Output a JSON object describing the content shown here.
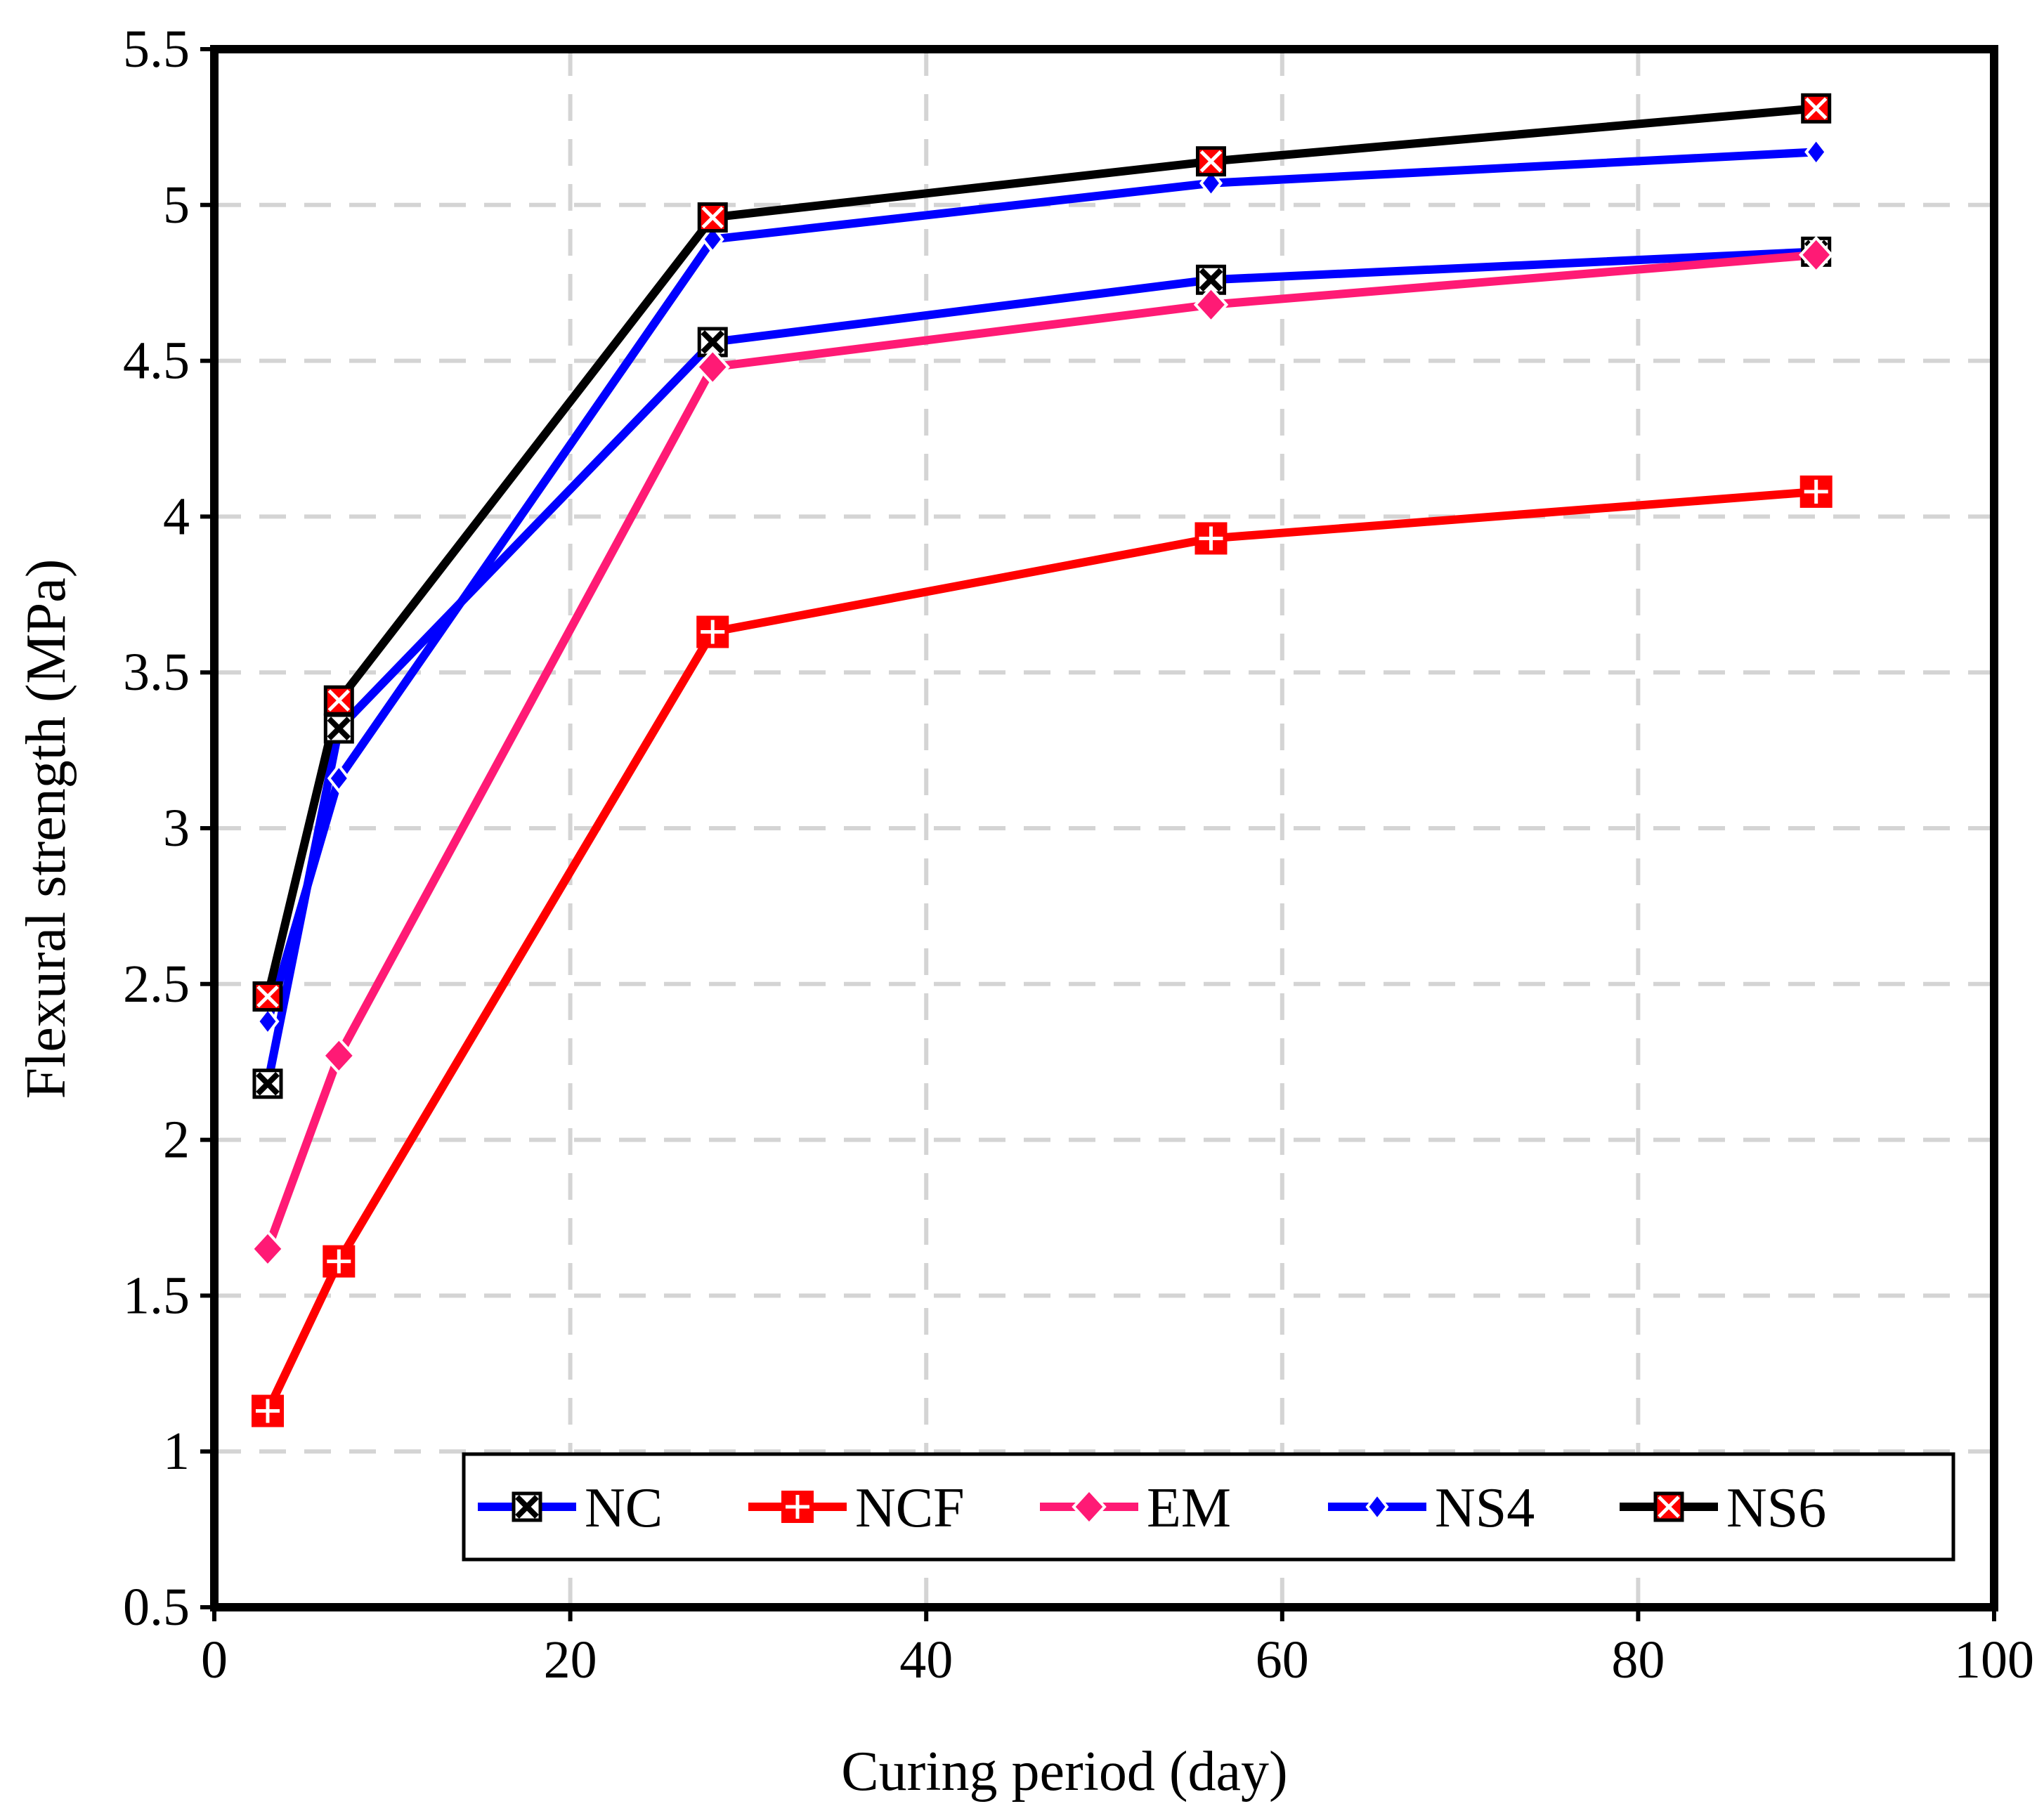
{
  "chart_data": {
    "type": "line",
    "title": "",
    "xlabel": "Curing period (day)",
    "ylabel": "Flexural strength (MPa)",
    "xlim": [
      0,
      100
    ],
    "ylim": [
      0.5,
      5.5
    ],
    "xticks": [
      0,
      20,
      40,
      60,
      80,
      100
    ],
    "yticks": [
      0.5,
      1,
      1.5,
      2,
      2.5,
      3,
      3.5,
      4,
      4.5,
      5,
      5.5
    ],
    "xtick_labels": [
      "0",
      "20",
      "40",
      "60",
      "80",
      "100"
    ],
    "ytick_labels": [
      "0.5",
      "1",
      "1.5",
      "2",
      "2.5",
      "3",
      "3.5",
      "4",
      "4.5",
      "5",
      "5.5"
    ],
    "grid": true,
    "legend_position": "bottom-right",
    "x": [
      3,
      7,
      28,
      56,
      90
    ],
    "series": [
      {
        "name": "NC",
        "values": [
          2.18,
          3.32,
          4.56,
          4.76,
          4.85
        ],
        "color": "#0000ff",
        "marker": "x-square",
        "marker_fill": "#ffffff",
        "marker_stroke": "#000000"
      },
      {
        "name": "NCF",
        "values": [
          1.13,
          1.61,
          3.63,
          3.93,
          4.08
        ],
        "color": "#ff0000",
        "marker": "plus-square",
        "marker_fill": "#ff0000",
        "marker_stroke": "#ffffff"
      },
      {
        "name": "EM",
        "values": [
          1.65,
          2.27,
          4.48,
          4.68,
          4.84
        ],
        "color": "#ff1a75",
        "marker": "diamond",
        "marker_fill": "#ff1a75",
        "marker_stroke": "#ffffff"
      },
      {
        "name": "NS4",
        "values": [
          2.38,
          3.16,
          4.89,
          5.07,
          5.17
        ],
        "color": "#0000ff",
        "marker": "small-diamond",
        "marker_fill": "#0000ff",
        "marker_stroke": "#ffffff"
      },
      {
        "name": "NS6",
        "values": [
          2.46,
          3.41,
          4.96,
          5.14,
          5.31
        ],
        "color": "#000000",
        "marker": "x-square",
        "marker_fill": "#ff0000",
        "marker_stroke": "#ffffff"
      }
    ]
  }
}
